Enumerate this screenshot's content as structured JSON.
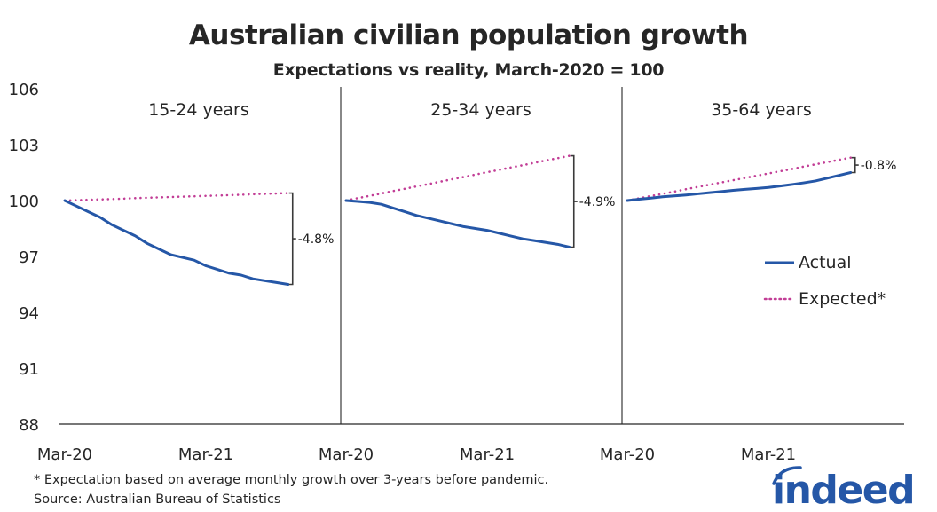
{
  "chart_data": {
    "type": "line",
    "title": "Australian civilian population growth",
    "subtitle": "Expectations vs reality, March-2020 = 100",
    "ylabel": "",
    "xlabel": "",
    "ylim": [
      88,
      106
    ],
    "yticks": [
      106,
      103,
      100,
      97,
      94,
      91,
      88
    ],
    "grid": false,
    "x": [
      "Mar-20",
      "Apr-20",
      "May-20",
      "Jun-20",
      "Jul-20",
      "Aug-20",
      "Sep-20",
      "Oct-20",
      "Nov-20",
      "Dec-20",
      "Jan-21",
      "Feb-21",
      "Mar-21",
      "Apr-21",
      "May-21",
      "Jun-21",
      "Jul-21",
      "Aug-21",
      "Sep-21",
      "Oct-21"
    ],
    "xticks": [
      "Mar-20",
      "Mar-21"
    ],
    "legend": {
      "placement": "right",
      "entries": [
        {
          "name": "Actual",
          "style": "solid",
          "color": "#2557a7"
        },
        {
          "name": "Expected*",
          "style": "dotted",
          "color": "#c23e96"
        }
      ]
    },
    "panels": [
      {
        "label": "15-24 years",
        "annotation": "-4.8%",
        "series": [
          {
            "name": "Actual",
            "values": [
              100.0,
              99.7,
              99.4,
              99.1,
              98.7,
              98.4,
              98.1,
              97.7,
              97.4,
              97.1,
              96.95,
              96.8,
              96.5,
              96.3,
              96.1,
              96.0,
              95.8,
              95.7,
              95.6,
              95.5
            ]
          },
          {
            "name": "Expected*",
            "values": [
              100.0,
              100.02,
              100.04,
              100.06,
              100.08,
              100.1,
              100.13,
              100.15,
              100.17,
              100.19,
              100.21,
              100.23,
              100.25,
              100.27,
              100.29,
              100.31,
              100.34,
              100.36,
              100.38,
              100.4
            ]
          }
        ]
      },
      {
        "label": "25-34 years",
        "annotation": "-4.9%",
        "series": [
          {
            "name": "Actual",
            "values": [
              100.0,
              99.95,
              99.9,
              99.8,
              99.6,
              99.4,
              99.2,
              99.05,
              98.9,
              98.75,
              98.6,
              98.5,
              98.4,
              98.25,
              98.1,
              97.95,
              97.85,
              97.75,
              97.65,
              97.5
            ]
          },
          {
            "name": "Expected*",
            "values": [
              100.0,
              100.13,
              100.25,
              100.38,
              100.51,
              100.63,
              100.76,
              100.88,
              101.01,
              101.14,
              101.26,
              101.39,
              101.52,
              101.64,
              101.77,
              101.89,
              102.02,
              102.15,
              102.27,
              102.4
            ]
          }
        ]
      },
      {
        "label": "35-64 years",
        "annotation": "-0.8%",
        "series": [
          {
            "name": "Actual",
            "values": [
              100.0,
              100.07,
              100.13,
              100.2,
              100.25,
              100.3,
              100.36,
              100.42,
              100.48,
              100.55,
              100.6,
              100.65,
              100.7,
              100.78,
              100.86,
              100.95,
              101.05,
              101.2,
              101.35,
              101.5
            ]
          },
          {
            "name": "Expected*",
            "values": [
              100.0,
              100.12,
              100.24,
              100.36,
              100.48,
              100.61,
              100.73,
              100.85,
              100.97,
              101.09,
              101.21,
              101.33,
              101.45,
              101.57,
              101.69,
              101.82,
              101.94,
              102.06,
              102.18,
              102.3
            ]
          }
        ]
      }
    ],
    "footnote": "* Expectation based on average monthly growth over 3-years before pandemic.",
    "source": "Source: Australian Bureau of Statistics"
  },
  "branding": {
    "logo_text": "indeed",
    "logo_color": "#2557a7"
  },
  "colors": {
    "actual": "#2557a7",
    "expected": "#c23e96",
    "axis": "#262626",
    "bracket": "#3a3a3a"
  }
}
